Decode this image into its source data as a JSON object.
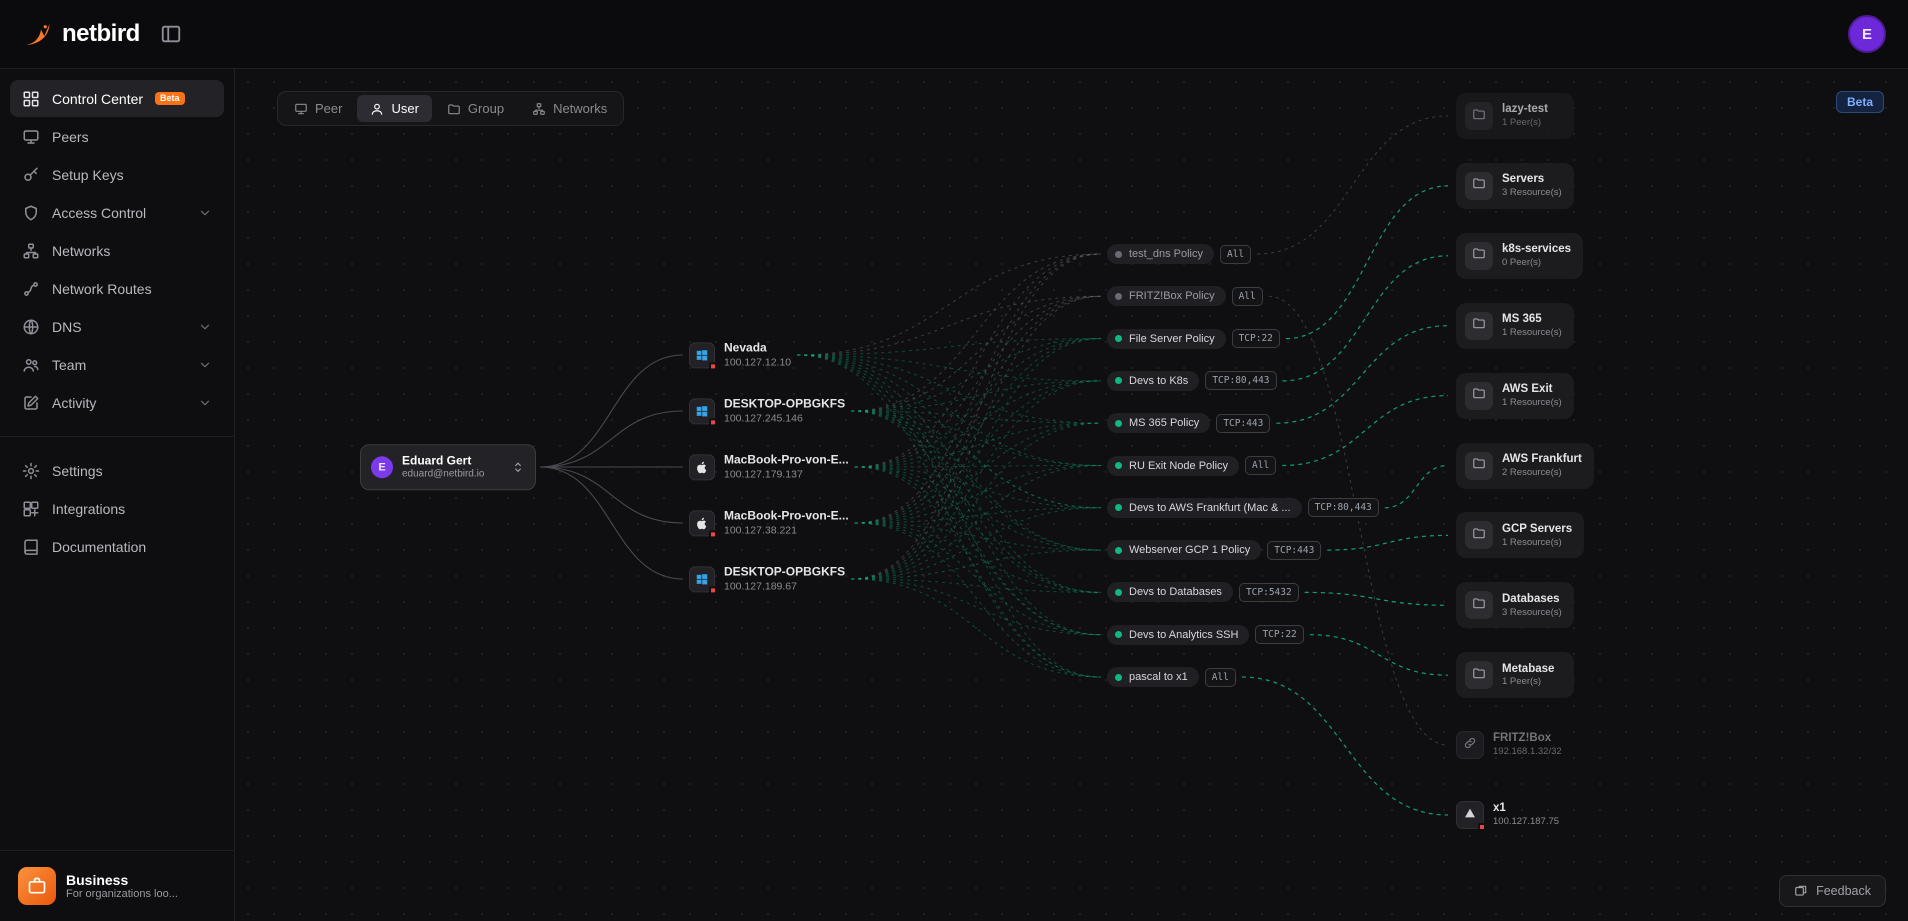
{
  "header": {
    "brand": "netbird",
    "avatar_initial": "E"
  },
  "sidebar": {
    "items": [
      {
        "label": "Control Center",
        "icon": "grid",
        "badge": "Beta",
        "active": true
      },
      {
        "label": "Peers",
        "icon": "monitor"
      },
      {
        "label": "Setup Keys",
        "icon": "key"
      },
      {
        "label": "Access Control",
        "icon": "shield",
        "chevron": true
      },
      {
        "label": "Networks",
        "icon": "network"
      },
      {
        "label": "Network Routes",
        "icon": "route"
      },
      {
        "label": "DNS",
        "icon": "globe",
        "chevron": true
      },
      {
        "label": "Team",
        "icon": "team",
        "chevron": true
      },
      {
        "label": "Activity",
        "icon": "edit",
        "chevron": true
      }
    ],
    "secondary_items": [
      {
        "label": "Settings",
        "icon": "gear"
      },
      {
        "label": "Integrations",
        "icon": "blocks"
      },
      {
        "label": "Documentation",
        "icon": "book"
      }
    ],
    "footer": {
      "title": "Business",
      "subtitle": "For organizations loo...",
      "icon": "briefcase"
    }
  },
  "canvas": {
    "tabs": [
      {
        "label": "Peer",
        "icon": "monitor"
      },
      {
        "label": "User",
        "icon": "person",
        "active": true
      },
      {
        "label": "Group",
        "icon": "folder"
      },
      {
        "label": "Networks",
        "icon": "network"
      }
    ],
    "beta_badge": "Beta",
    "feedback_label": "Feedback",
    "user_node": {
      "name": "Eduard Gert",
      "email": "eduard@netbird.io",
      "initial": "E"
    },
    "peers": [
      {
        "name": "Nevada",
        "ip": "100.127.12.10",
        "os": "windows",
        "alert": true
      },
      {
        "name": "DESKTOP-OPBGKFS",
        "ip": "100.127.245.146",
        "os": "windows",
        "alert": true
      },
      {
        "name": "MacBook-Pro-von-E...",
        "ip": "100.127.179.137",
        "os": "apple",
        "alert": false
      },
      {
        "name": "MacBook-Pro-von-E...",
        "ip": "100.127.38.221",
        "os": "apple",
        "alert": true
      },
      {
        "name": "DESKTOP-OPBGKFS",
        "ip": "100.127.189.67",
        "os": "windows",
        "alert": true
      }
    ],
    "policies": [
      {
        "name": "test_dns Policy",
        "port": "All",
        "state": "inactive",
        "target": "lazy-test"
      },
      {
        "name": "FRITZ!Box Policy",
        "port": "All",
        "state": "inactive",
        "target": "FRITZ!Box"
      },
      {
        "name": "File Server Policy",
        "port": "TCP:22",
        "state": "active",
        "target": "Servers"
      },
      {
        "name": "Devs to K8s",
        "port": "TCP:80,443",
        "state": "active",
        "target": "k8s-services"
      },
      {
        "name": "MS 365 Policy",
        "port": "TCP:443",
        "state": "active",
        "target": "MS 365"
      },
      {
        "name": "RU Exit Node Policy",
        "port": "All",
        "state": "active",
        "target": "AWS Exit"
      },
      {
        "name": "Devs to AWS Frankfurt (Mac & ...",
        "port": "TCP:80,443",
        "state": "active",
        "target": "AWS Frankfurt"
      },
      {
        "name": "Webserver GCP 1 Policy",
        "port": "TCP:443",
        "state": "active",
        "target": "GCP Servers"
      },
      {
        "name": "Devs to Databases",
        "port": "TCP:5432",
        "state": "active",
        "target": "Databases"
      },
      {
        "name": "Devs to Analytics SSH",
        "port": "TCP:22",
        "state": "active",
        "target": "Metabase"
      },
      {
        "name": "pascal to x1",
        "port": "All",
        "state": "active",
        "target": "x1"
      }
    ],
    "groups": [
      {
        "name": "lazy-test",
        "detail": "1 Peer(s)",
        "style": "card dim",
        "icon": "folder"
      },
      {
        "name": "Servers",
        "detail": "3 Resource(s)",
        "style": "card",
        "icon": "folder"
      },
      {
        "name": "k8s-services",
        "detail": "0 Peer(s)",
        "style": "card",
        "icon": "folder"
      },
      {
        "name": "MS 365",
        "detail": "1 Resource(s)",
        "style": "card",
        "icon": "folder"
      },
      {
        "name": "AWS Exit",
        "detail": "1 Resource(s)",
        "style": "card",
        "icon": "folder"
      },
      {
        "name": "AWS Frankfurt",
        "detail": "2 Resource(s)",
        "style": "card",
        "icon": "folder"
      },
      {
        "name": "GCP Servers",
        "detail": "1 Resource(s)",
        "style": "card",
        "icon": "folder"
      },
      {
        "name": "Databases",
        "detail": "3 Resource(s)",
        "style": "card",
        "icon": "folder"
      },
      {
        "name": "Metabase",
        "detail": "1 Peer(s)",
        "style": "card",
        "icon": "folder"
      },
      {
        "name": "FRITZ!Box",
        "detail": "192.168.1.32/32",
        "style": "plain-dim dim",
        "icon": "link"
      },
      {
        "name": "x1",
        "detail": "100.127.187.75",
        "style": "plain",
        "icon": "triangle",
        "alert": true
      }
    ]
  },
  "colors": {
    "accent_green": "#10b981",
    "accent_orange": "#f97316",
    "avatar_purple": "#6d28d9",
    "windows_blue": "#35a4e8",
    "beta_blue": "#7dafff",
    "status_red": "#ef4444"
  }
}
